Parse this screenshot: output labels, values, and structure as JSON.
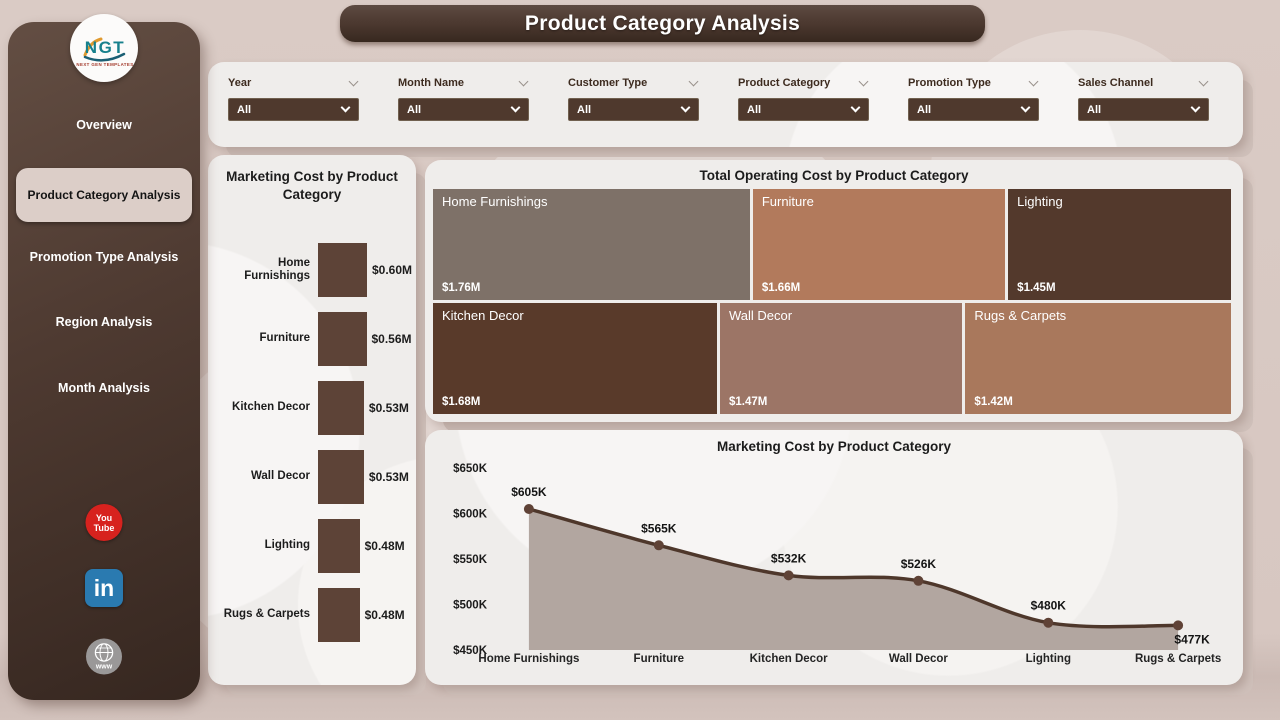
{
  "page": {
    "title": "Product Category Analysis"
  },
  "sidebar": {
    "logo": {
      "text": "NGT",
      "subtext": "NEXT GEN TEMPLATES"
    },
    "items": [
      {
        "label": "Overview",
        "active": false
      },
      {
        "label": "Product Category Analysis",
        "active": true
      },
      {
        "label": "Promotion Type Analysis",
        "active": false
      },
      {
        "label": "Region Analysis",
        "active": false
      },
      {
        "label": "Month Analysis",
        "active": false
      }
    ],
    "social": [
      {
        "name": "youtube",
        "line1": "You",
        "line2": "Tube"
      },
      {
        "name": "linkedin",
        "label": "in"
      },
      {
        "name": "website",
        "label": "www"
      }
    ]
  },
  "filters": [
    {
      "label": "Year",
      "value": "All"
    },
    {
      "label": "Month Name",
      "value": "All"
    },
    {
      "label": "Customer Type",
      "value": "All"
    },
    {
      "label": "Product Category",
      "value": "All"
    },
    {
      "label": "Promotion Type",
      "value": "All"
    },
    {
      "label": "Sales Channel",
      "value": "All"
    }
  ],
  "chart_data": [
    {
      "id": "bar",
      "type": "bar",
      "title": "Marketing Cost by Product Category",
      "orientation": "horizontal",
      "categories": [
        "Home Furnishings",
        "Furniture",
        "Kitchen Decor",
        "Wall Decor",
        "Lighting",
        "Rugs & Carpets"
      ],
      "values": [
        0.6,
        0.56,
        0.53,
        0.53,
        0.48,
        0.48
      ],
      "value_labels": [
        "$0.60M",
        "$0.56M",
        "$0.53M",
        "$0.53M",
        "$0.48M",
        "$0.48M"
      ],
      "unit": "millions USD",
      "xlim": [
        0,
        0.6
      ],
      "bar_color": "#5d4337"
    },
    {
      "id": "treemap",
      "type": "treemap",
      "title": "Total Operating Cost by Product Category",
      "unit": "millions USD",
      "tiles": [
        {
          "label": "Home Furnishings",
          "value": 1.76,
          "value_label": "$1.76M",
          "color": "#7e7168",
          "row": 0
        },
        {
          "label": "Furniture",
          "value": 1.66,
          "value_label": "$1.66M",
          "color": "#b27a5c",
          "row": 0
        },
        {
          "label": "Lighting",
          "value": 1.45,
          "value_label": "$1.45M",
          "color": "#53392c",
          "row": 0
        },
        {
          "label": "Kitchen Decor",
          "value": 1.68,
          "value_label": "$1.68M",
          "color": "#593a2a",
          "row": 1
        },
        {
          "label": "Wall Decor",
          "value": 1.47,
          "value_label": "$1.47M",
          "color": "#9c7566",
          "row": 1
        },
        {
          "label": "Rugs & Carpets",
          "value": 1.42,
          "value_label": "$1.42M",
          "color": "#a9785c",
          "row": 1
        }
      ]
    },
    {
      "id": "area",
      "type": "area",
      "title": "Marketing Cost by Product Category",
      "categories": [
        "Home Furnishings",
        "Furniture",
        "Kitchen Decor",
        "Wall Decor",
        "Lighting",
        "Rugs & Carpets"
      ],
      "values": [
        605,
        565,
        532,
        526,
        480,
        477
      ],
      "point_labels": [
        "$605K",
        "$565K",
        "$532K",
        "$526K",
        "$480K",
        "$477K"
      ],
      "y_ticks": [
        "$650K",
        "$600K",
        "$550K",
        "$500K",
        "$450K"
      ],
      "ylim": [
        450,
        650
      ],
      "unit": "thousands USD",
      "line_color": "#4e372b",
      "fill_color": "#b2a6a0",
      "marker_color": "#5f4236",
      "legend": "none",
      "grid": "off"
    }
  ]
}
